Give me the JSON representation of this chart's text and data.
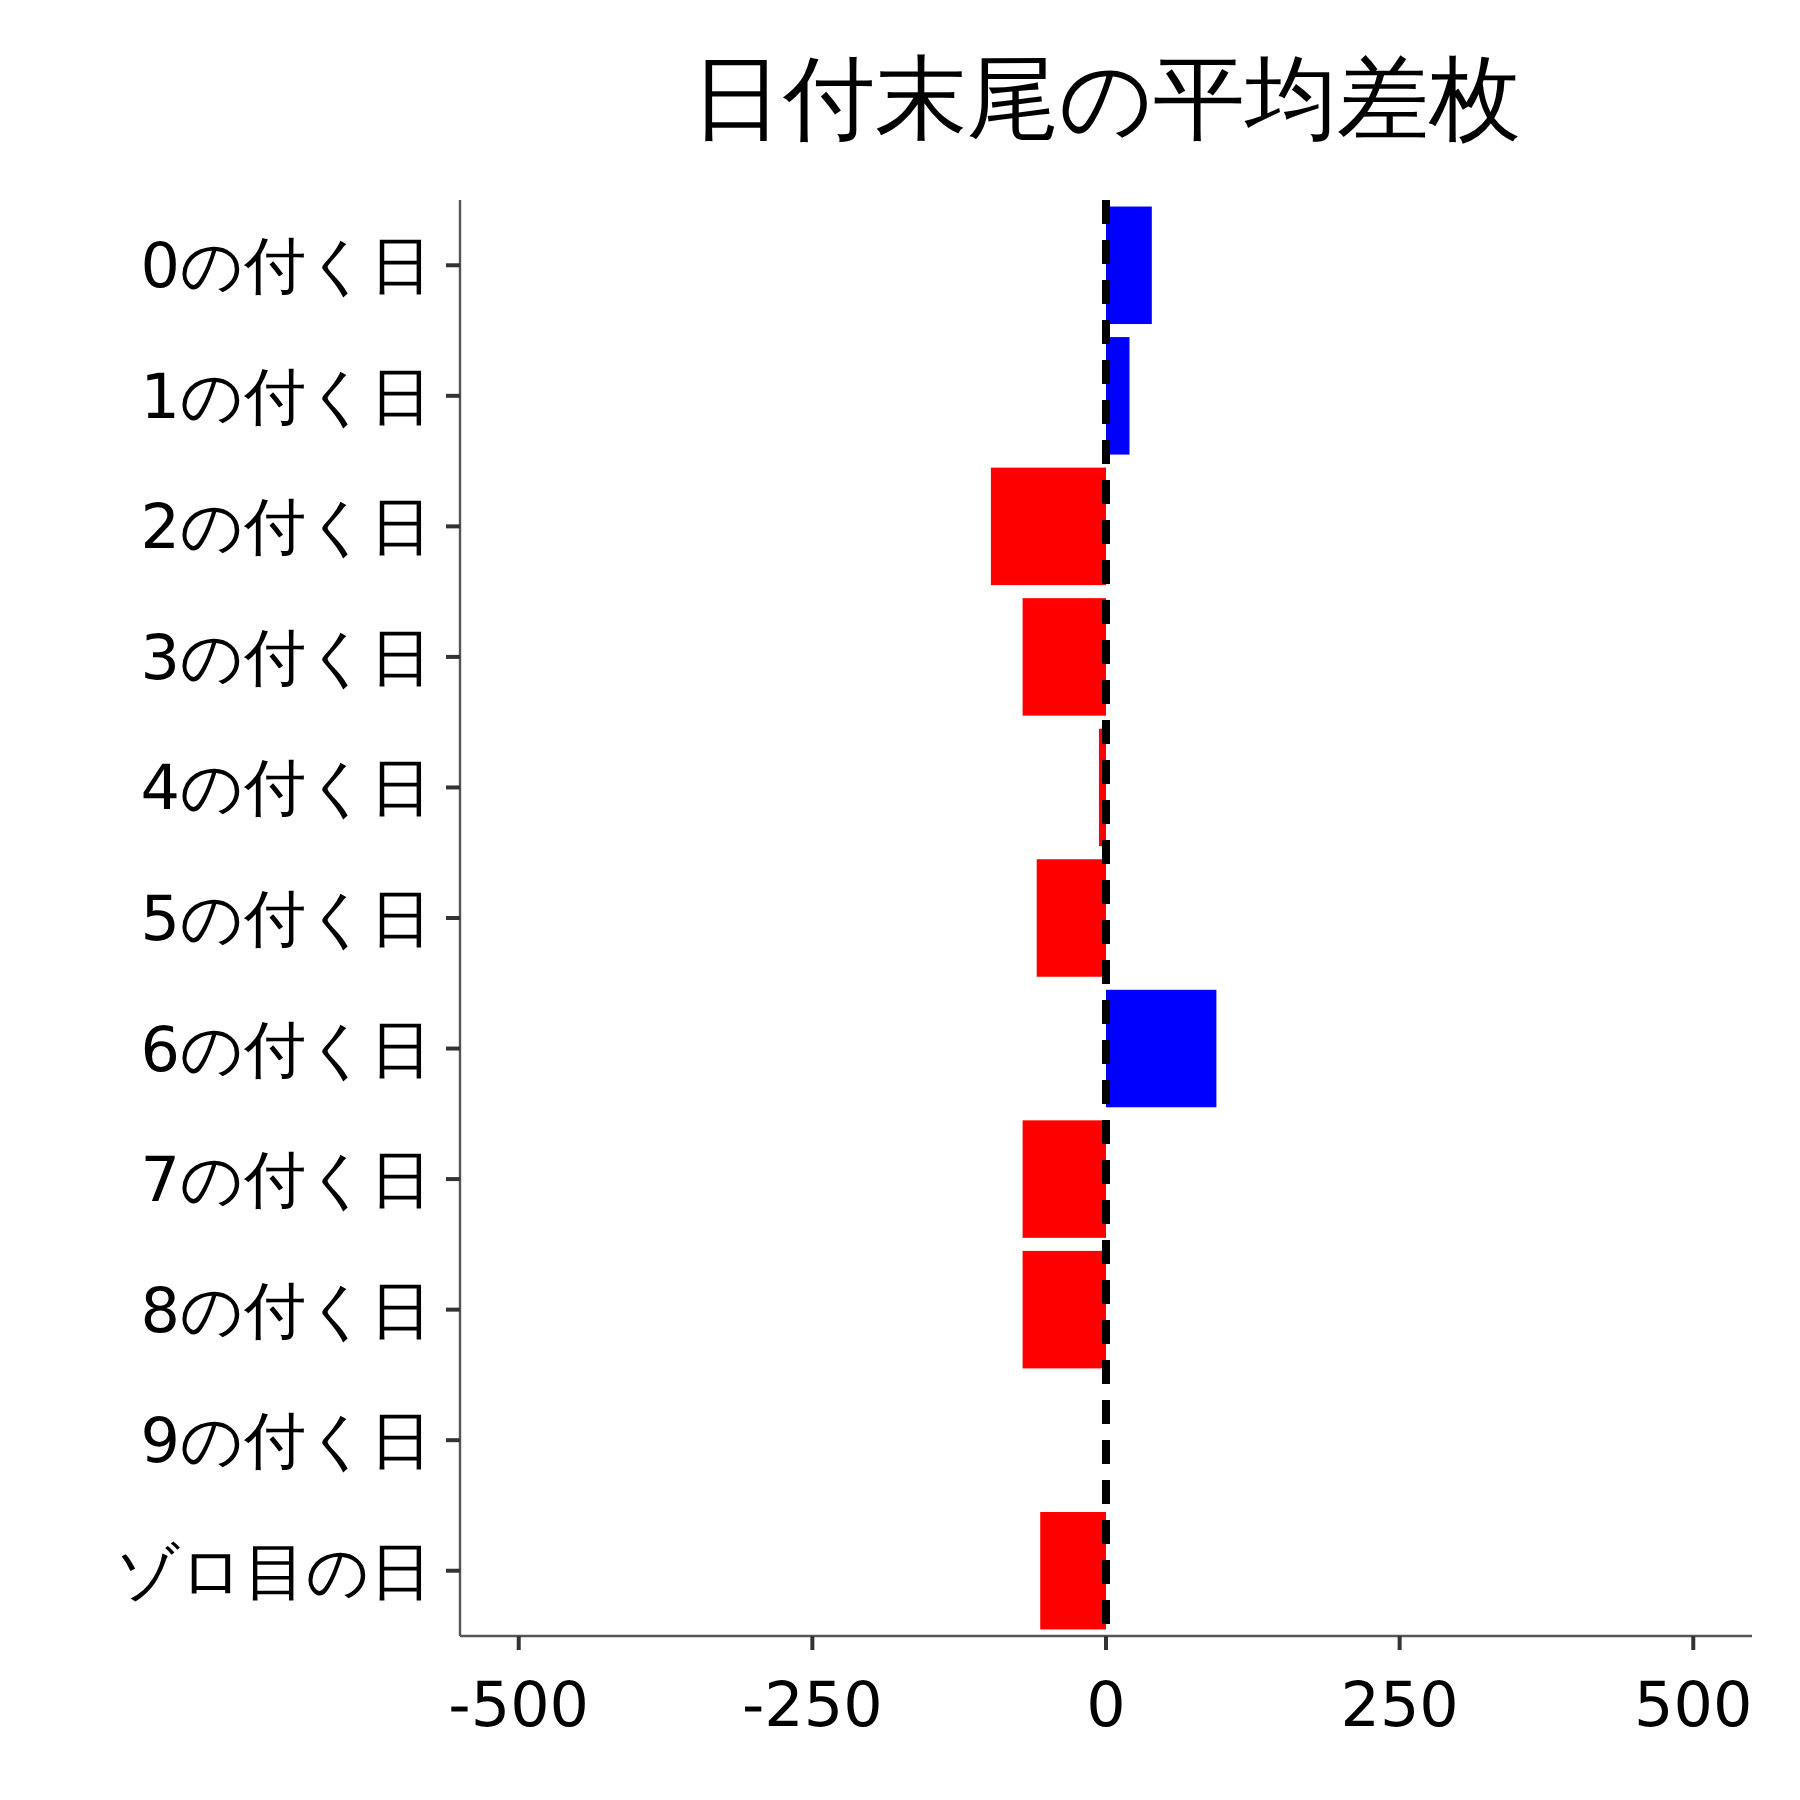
{
  "chart_data": {
    "type": "bar",
    "orientation": "horizontal",
    "title": "日付末尾の平均差枚",
    "categories": [
      "0の付く日",
      "1の付く日",
      "2の付く日",
      "3の付く日",
      "4の付く日",
      "5の付く日",
      "6の付く日",
      "7の付く日",
      "8の付く日",
      "9の付く日",
      "ゾロ目の日"
    ],
    "values": [
      39,
      20,
      -98,
      -71,
      -6,
      -59,
      94,
      -71,
      -71,
      0,
      -56
    ],
    "colors": [
      "#0000ff",
      "#0000ff",
      "#ff0000",
      "#ff0000",
      "#ff0000",
      "#ff0000",
      "#0000ff",
      "#ff0000",
      "#ff0000",
      "#ff0000",
      "#ff0000"
    ],
    "xlim": [
      -550,
      550
    ],
    "xticks": [
      -500,
      -250,
      0,
      250,
      500
    ],
    "ref_lines": [
      {
        "axis": "x",
        "value": 0,
        "color": "#000000",
        "line_style": "dashed"
      }
    ],
    "grid": false
  }
}
